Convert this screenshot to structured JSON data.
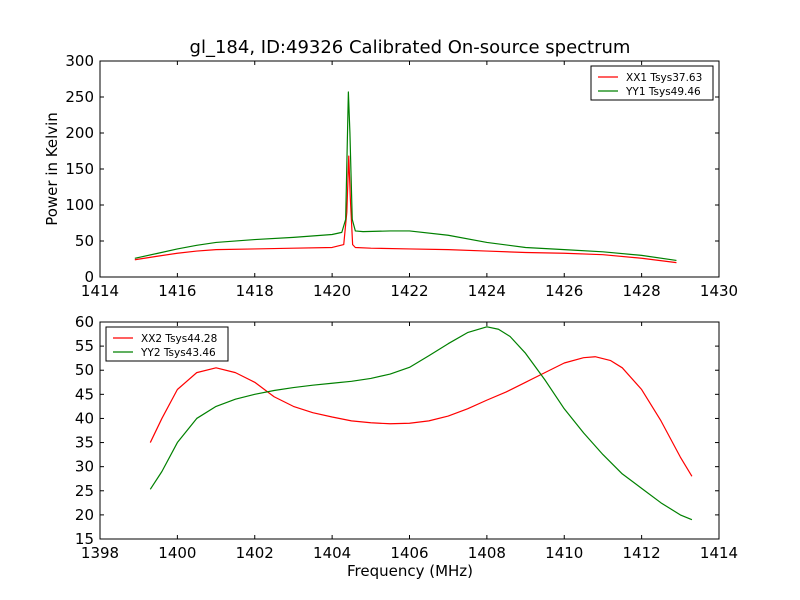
{
  "chart_data": [
    {
      "type": "line",
      "title": "gl_184, ID:49326 Calibrated On-source spectrum",
      "xlabel": "",
      "ylabel": "Power in Kelvin",
      "xlim": [
        1414,
        1430
      ],
      "ylim": [
        0,
        300
      ],
      "xticks": [
        1414,
        1416,
        1418,
        1420,
        1422,
        1424,
        1426,
        1428,
        1430
      ],
      "yticks": [
        0,
        50,
        100,
        150,
        200,
        250,
        300
      ],
      "legend": "top-right",
      "grid": false,
      "series": [
        {
          "name": "XX1 Tsys37.63",
          "color": "#ff0000",
          "x": [
            1414.9,
            1415.5,
            1416.0,
            1416.5,
            1417.0,
            1418.0,
            1419.0,
            1420.0,
            1420.3,
            1420.38,
            1420.43,
            1420.47,
            1420.53,
            1420.6,
            1421.0,
            1422.0,
            1423.0,
            1424.0,
            1425.0,
            1426.0,
            1427.0,
            1428.0,
            1428.9
          ],
          "y": [
            24,
            29,
            33,
            36,
            38,
            39,
            40,
            41,
            45,
            90,
            168,
            110,
            45,
            41,
            40,
            39,
            38,
            36,
            34,
            33,
            31,
            26,
            20
          ]
        },
        {
          "name": "YY1 Tsys49.46",
          "color": "#008000",
          "x": [
            1414.9,
            1415.5,
            1416.0,
            1416.5,
            1417.0,
            1418.0,
            1419.0,
            1420.0,
            1420.25,
            1420.35,
            1420.42,
            1420.46,
            1420.52,
            1420.6,
            1420.8,
            1421.5,
            1422.0,
            1423.0,
            1424.0,
            1425.0,
            1426.0,
            1427.0,
            1428.0,
            1428.9
          ],
          "y": [
            26,
            33,
            39,
            44,
            48,
            52,
            55,
            59,
            62,
            80,
            257,
            200,
            80,
            64,
            63,
            64,
            64,
            58,
            48,
            41,
            38,
            35,
            30,
            23
          ]
        }
      ]
    },
    {
      "type": "line",
      "title": "",
      "xlabel": "Frequency (MHz)",
      "ylabel": "",
      "xlim": [
        1398,
        1414
      ],
      "ylim": [
        15,
        60
      ],
      "xticks": [
        1398,
        1400,
        1402,
        1404,
        1406,
        1408,
        1410,
        1412,
        1414
      ],
      "yticks": [
        15,
        20,
        25,
        30,
        35,
        40,
        45,
        50,
        55,
        60
      ],
      "legend": "top-left",
      "grid": false,
      "series": [
        {
          "name": "XX2 Tsys44.28",
          "color": "#ff0000",
          "x": [
            1399.3,
            1399.6,
            1400.0,
            1400.5,
            1401.0,
            1401.5,
            1402.0,
            1402.5,
            1403.0,
            1403.5,
            1404.0,
            1404.5,
            1405.0,
            1405.5,
            1406.0,
            1406.5,
            1407.0,
            1407.5,
            1408.0,
            1408.5,
            1409.0,
            1409.5,
            1410.0,
            1410.5,
            1410.8,
            1411.2,
            1411.5,
            1412.0,
            1412.5,
            1413.0,
            1413.3
          ],
          "y": [
            35,
            40,
            46,
            49.5,
            50.5,
            49.5,
            47.5,
            44.5,
            42.5,
            41.2,
            40.3,
            39.5,
            39.1,
            38.9,
            39.0,
            39.5,
            40.5,
            42.0,
            43.8,
            45.5,
            47.5,
            49.5,
            51.5,
            52.6,
            52.8,
            52.0,
            50.5,
            46.0,
            39.5,
            32.0,
            28
          ]
        },
        {
          "name": "YY2 Tsys43.46",
          "color": "#008000",
          "x": [
            1399.3,
            1399.6,
            1400.0,
            1400.5,
            1401.0,
            1401.5,
            1402.0,
            1402.5,
            1403.0,
            1403.5,
            1404.0,
            1404.5,
            1405.0,
            1405.5,
            1406.0,
            1406.5,
            1407.0,
            1407.5,
            1408.0,
            1408.3,
            1408.6,
            1409.0,
            1409.5,
            1410.0,
            1410.5,
            1411.0,
            1411.5,
            1412.0,
            1412.5,
            1413.0,
            1413.3
          ],
          "y": [
            25.3,
            29,
            35,
            40,
            42.5,
            44.0,
            45.0,
            45.8,
            46.4,
            46.9,
            47.3,
            47.7,
            48.3,
            49.2,
            50.6,
            53.0,
            55.5,
            57.8,
            59.0,
            58.5,
            57.0,
            53.5,
            48.0,
            42.0,
            37.0,
            32.5,
            28.5,
            25.5,
            22.5,
            20.0,
            19
          ]
        }
      ]
    }
  ]
}
